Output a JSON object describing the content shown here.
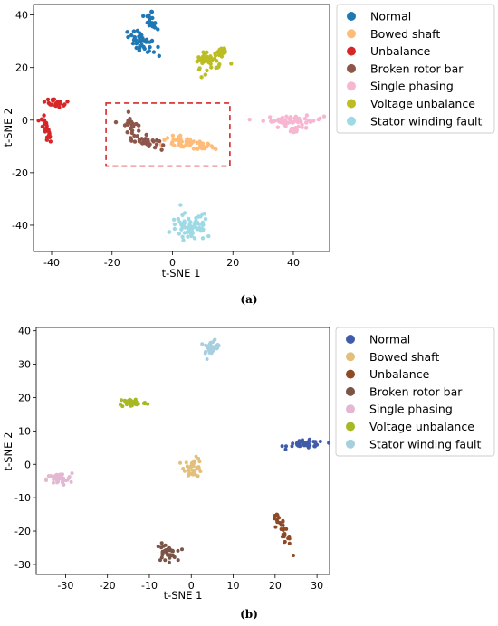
{
  "chart_data": [
    {
      "panel": "(a)",
      "type": "scatter",
      "xlabel": "t-SNE 1",
      "ylabel": "t-SNE 2",
      "xlim": [
        -46,
        52
      ],
      "ylim": [
        -50,
        44
      ],
      "xticks": [
        -40,
        -20,
        0,
        20,
        40
      ],
      "yticks": [
        -40,
        -20,
        0,
        20,
        40
      ],
      "legend_position": "outside right",
      "highlight_box": {
        "x": [
          -22,
          19
        ],
        "y": [
          -17.5,
          6.5
        ],
        "color": "#d62728",
        "style": "dashed"
      },
      "series": [
        {
          "name": "Normal",
          "color": "#1f77b4",
          "clusters": [
            {
              "x": -10,
              "y": 30,
              "sx": 1.6,
              "sy": 3,
              "n": 40,
              "rot": 0.85
            },
            {
              "x": -7,
              "y": 38,
              "sx": 0.9,
              "sy": 2,
              "n": 20,
              "rot": 0.4
            }
          ]
        },
        {
          "name": "Bowed shaft",
          "color": "#ffbb78",
          "clusters": [
            {
              "x": 5,
              "y": -9,
              "sx": 4.5,
              "sy": 1.1,
              "n": 55,
              "rot": -0.15
            }
          ]
        },
        {
          "name": "Unbalance",
          "color": "#d62728",
          "clusters": [
            {
              "x": -42,
              "y": -3,
              "sx": 0.6,
              "sy": 3.2,
              "n": 30,
              "rot": 0.3
            },
            {
              "x": -38,
              "y": 6.5,
              "sx": 2,
              "sy": 1,
              "n": 25,
              "rot": -0.3
            }
          ]
        },
        {
          "name": "Broken rotor bar",
          "color": "#8c564b",
          "clusters": [
            {
              "x": -14,
              "y": -2,
              "sx": 1.2,
              "sy": 2.2,
              "n": 25,
              "rot": 0.3
            },
            {
              "x": -9,
              "y": -8,
              "sx": 2.2,
              "sy": 1.1,
              "n": 30,
              "rot": -0.2
            }
          ]
        },
        {
          "name": "Single phasing",
          "color": "#f7b6d2",
          "clusters": [
            {
              "x": 40,
              "y": 0,
              "sx": 5,
              "sy": 0.8,
              "n": 50,
              "rot": 0
            },
            {
              "x": 41,
              "y": -3,
              "sx": 2,
              "sy": 0.6,
              "n": 15,
              "rot": 0
            }
          ]
        },
        {
          "name": "Voltage unbalance",
          "color": "#bcbd22",
          "clusters": [
            {
              "x": 12,
              "y": 22,
              "sx": 2.6,
              "sy": 1.8,
              "n": 40,
              "rot": 0.6
            },
            {
              "x": 16,
              "y": 26,
              "sx": 1.2,
              "sy": 1.2,
              "n": 15,
              "rot": 0
            }
          ]
        },
        {
          "name": "Stator winding fault",
          "color": "#9edae5",
          "clusters": [
            {
              "x": 6,
              "y": -41,
              "sx": 3.5,
              "sy": 2.8,
              "n": 70,
              "rot": 0.2
            }
          ]
        }
      ]
    },
    {
      "panel": "(b)",
      "type": "scatter",
      "xlabel": "t-SNE 1",
      "ylabel": "t-SNE 2",
      "xlim": [
        -37,
        33
      ],
      "ylim": [
        -33,
        41
      ],
      "xticks": [
        -30,
        -20,
        -10,
        0,
        10,
        20,
        30
      ],
      "yticks": [
        -30,
        -20,
        -10,
        0,
        10,
        20,
        30,
        40
      ],
      "legend_position": "outside right",
      "series": [
        {
          "name": "Normal",
          "color": "#3f5ba9",
          "clusters": [
            {
              "x": 27.5,
              "y": 6,
              "sx": 2.2,
              "sy": 0.6,
              "n": 45,
              "rot": 0
            }
          ]
        },
        {
          "name": "Bowed shaft",
          "color": "#e3c07a",
          "clusters": [
            {
              "x": 0.5,
              "y": -1,
              "sx": 1.1,
              "sy": 1.4,
              "n": 35,
              "rot": 0
            }
          ]
        },
        {
          "name": "Unbalance",
          "color": "#8e4a25",
          "clusters": [
            {
              "x": 21.5,
              "y": -18.5,
              "sx": 0.6,
              "sy": 2.3,
              "n": 35,
              "rot": 0.35
            }
          ]
        },
        {
          "name": "Broken rotor bar",
          "color": "#7a5447",
          "clusters": [
            {
              "x": -6,
              "y": -26.5,
              "sx": 1.2,
              "sy": 1.3,
              "n": 40,
              "rot": 0
            }
          ]
        },
        {
          "name": "Single phasing",
          "color": "#e3b8d2",
          "clusters": [
            {
              "x": -31.5,
              "y": -4.5,
              "sx": 1.5,
              "sy": 0.9,
              "n": 40,
              "rot": 0
            }
          ]
        },
        {
          "name": "Voltage unbalance",
          "color": "#a7b824",
          "clusters": [
            {
              "x": -14,
              "y": 18.5,
              "sx": 1.7,
              "sy": 0.7,
              "n": 40,
              "rot": 0
            }
          ]
        },
        {
          "name": "Stator winding fault",
          "color": "#a8cfe0",
          "clusters": [
            {
              "x": 5,
              "y": 35,
              "sx": 0.9,
              "sy": 1.3,
              "n": 35,
              "rot": -0.3
            }
          ]
        }
      ]
    }
  ]
}
